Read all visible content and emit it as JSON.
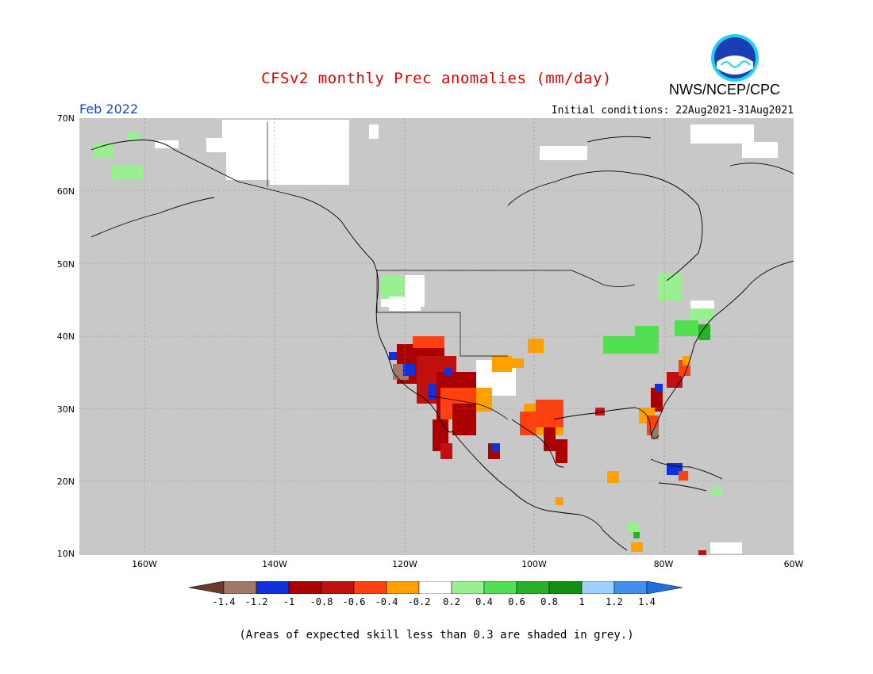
{
  "header": {
    "title": "CFSv2 monthly Prec anomalies (mm/day)",
    "agency": "NWS/NCEP/CPC",
    "logo_text": "NOAA",
    "month": "Feb 2022",
    "initial_conditions": "Initial conditions: 22Aug2021-31Aug2021"
  },
  "axes": {
    "lat_labels": [
      "70N",
      "60N",
      "50N",
      "40N",
      "30N",
      "20N",
      "10N"
    ],
    "lon_labels": [
      "160W",
      "140W",
      "120W",
      "100W",
      "80W",
      "60W"
    ],
    "lat_range": [
      10,
      70
    ],
    "lon_range": [
      -172,
      -60
    ]
  },
  "colors": {
    "skill_mask_grey": "#c8c8c8",
    "neutral": "#ffffff",
    "coast": "#000000"
  },
  "colorbar": {
    "labels": [
      "-1.4",
      "-1.2",
      "-1",
      "-0.8",
      "-0.6",
      "-0.4",
      "-0.2",
      "0.2",
      "0.4",
      "0.6",
      "0.8",
      "1",
      "1.2",
      "1.4"
    ],
    "bins": [
      "<-1.4",
      "-1.4..-1.2",
      "-1.2..-1",
      "-1..-0.8",
      "-0.8..-0.6",
      "-0.6..-0.4",
      "-0.4..-0.2",
      "-0.2..0.2",
      "0.2..0.4",
      "0.4..0.6",
      "0.6..0.8",
      "0.8..1",
      "1..1.2",
      "1.2..1.4",
      ">1.4"
    ],
    "colors": [
      "#6b3a2a",
      "#a07868",
      "#1030d8",
      "#aa0000",
      "#c01010",
      "#ff4010",
      "#ffa000",
      "#ffffff",
      "#98f090",
      "#50e050",
      "#28b028",
      "#109010",
      "#a0d0ff",
      "#4090f0",
      "#2070e0"
    ]
  },
  "footnote": "(Areas of expected skill less than 0.3 are shaded in grey.)"
}
